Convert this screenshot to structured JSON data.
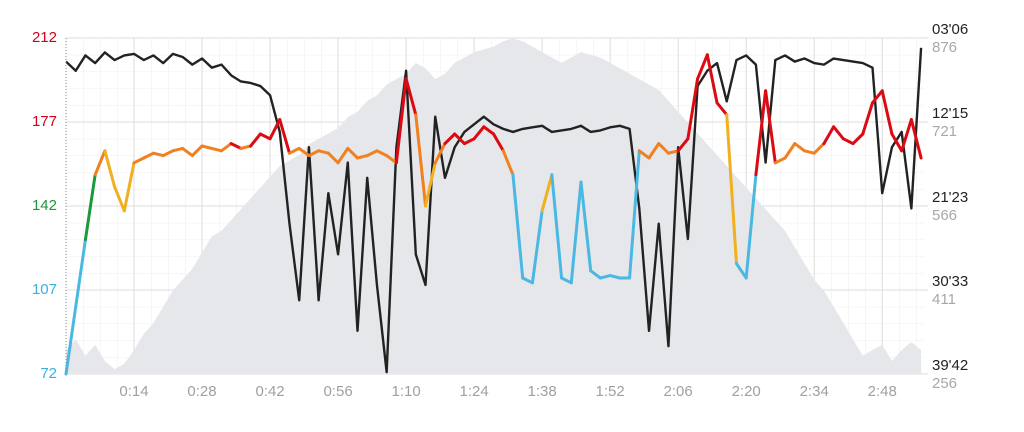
{
  "chart_data": {
    "type": "line",
    "x": [
      0,
      2,
      4,
      6,
      8,
      10,
      12,
      14,
      16,
      18,
      20,
      22,
      24,
      26,
      28,
      30,
      32,
      34,
      36,
      38,
      40,
      42,
      44,
      46,
      48,
      50,
      52,
      54,
      56,
      58,
      60,
      62,
      64,
      66,
      68,
      70,
      72,
      74,
      76,
      78,
      80,
      82,
      84,
      86,
      88,
      90,
      92,
      94,
      96,
      98,
      100,
      102,
      104,
      106,
      108,
      110,
      112,
      114,
      116,
      118,
      120,
      122,
      124,
      126,
      128,
      130,
      132,
      134,
      136,
      138,
      140,
      142,
      144,
      146,
      148,
      150,
      152,
      154,
      156,
      158,
      160,
      162,
      164,
      166,
      168,
      170,
      172,
      174,
      176
    ],
    "xlim": [
      0,
      176.6
    ],
    "xticks": [
      {
        "value": 14,
        "label": "0:14"
      },
      {
        "value": 28,
        "label": "0:28"
      },
      {
        "value": 42,
        "label": "0:42"
      },
      {
        "value": 56,
        "label": "0:56"
      },
      {
        "value": 70,
        "label": "1:10"
      },
      {
        "value": 84,
        "label": "1:24"
      },
      {
        "value": 98,
        "label": "1:38"
      },
      {
        "value": 112,
        "label": "1:52"
      },
      {
        "value": 126,
        "label": "2:06"
      },
      {
        "value": 140,
        "label": "2:20"
      },
      {
        "value": 154,
        "label": "2:34"
      },
      {
        "value": 168,
        "label": "2:48"
      }
    ],
    "ylim": [
      72,
      212
    ],
    "yticks": [
      72,
      107,
      142,
      177,
      212
    ],
    "ytick_colors": [
      "#3ab0dd",
      "#3ab0dd",
      "#1a9a3a",
      "#d0021b",
      "#d0021b"
    ],
    "hr": {
      "values": [
        72,
        100,
        128,
        155,
        165,
        150,
        140,
        160,
        162,
        164,
        163,
        165,
        166,
        163,
        167,
        166,
        165,
        168,
        166,
        167,
        172,
        170,
        178,
        164,
        166,
        163,
        165,
        164,
        160,
        166,
        162,
        163,
        165,
        163,
        160,
        195,
        180,
        142,
        160,
        168,
        172,
        168,
        170,
        175,
        172,
        165,
        155,
        112,
        110,
        140,
        155,
        112,
        110,
        152,
        115,
        112,
        113,
        112,
        112,
        165,
        162,
        168,
        164,
        165,
        170,
        195,
        205,
        185,
        180,
        118,
        112,
        155,
        190,
        160,
        162,
        168,
        165,
        164,
        168,
        175,
        170,
        168,
        172,
        185,
        190,
        172,
        165,
        178,
        162
      ],
      "zones": [
        {
          "min": 0,
          "color": "#4ab8e3"
        },
        {
          "min": 139,
          "color": "#1a9a3a"
        },
        {
          "min": 145,
          "color": "#f0b020"
        },
        {
          "min": 158,
          "color": "#f08020"
        },
        {
          "min": 167,
          "color": "#dc0a12"
        }
      ]
    },
    "pace": {
      "color": "#222222",
      "values": [
        340,
        400,
        300,
        350,
        280,
        330,
        300,
        290,
        330,
        300,
        350,
        290,
        310,
        360,
        320,
        380,
        360,
        430,
        470,
        480,
        500,
        560,
        800,
        1400,
        1900,
        900,
        1900,
        1200,
        1600,
        1000,
        2100,
        1100,
        1800,
        2370,
        900,
        400,
        1600,
        1800,
        700,
        1100,
        900,
        800,
        750,
        700,
        750,
        780,
        800,
        780,
        770,
        760,
        800,
        790,
        780,
        760,
        800,
        790,
        770,
        760,
        780,
        1300,
        2100,
        1400,
        2200,
        900,
        1500,
        500,
        400,
        350,
        600,
        330,
        300,
        360,
        1000,
        330,
        300,
        340,
        320,
        350,
        360,
        320,
        330,
        340,
        350,
        380,
        1200,
        900,
        800,
        1300,
        250
      ],
      "lim": [
        2382,
        186
      ],
      "ticks": [
        {
          "value": 186,
          "label": "03'06"
        },
        {
          "value": 735,
          "label": "12'15"
        },
        {
          "value": 1283,
          "label": "21'23"
        },
        {
          "value": 1833,
          "label": "30'33"
        },
        {
          "value": 2382,
          "label": "39'42"
        }
      ]
    },
    "elevation": {
      "color": "#e6e7ea",
      "values": [
        300,
        320,
        290,
        310,
        280,
        265,
        275,
        300,
        330,
        350,
        380,
        410,
        430,
        450,
        480,
        510,
        520,
        540,
        560,
        580,
        600,
        620,
        640,
        650,
        660,
        680,
        690,
        700,
        710,
        730,
        740,
        760,
        770,
        790,
        800,
        810,
        830,
        820,
        800,
        810,
        830,
        840,
        850,
        855,
        860,
        870,
        875,
        870,
        860,
        850,
        840,
        830,
        840,
        850,
        845,
        840,
        830,
        820,
        810,
        800,
        790,
        780,
        760,
        740,
        720,
        700,
        680,
        660,
        640,
        620,
        600,
        580,
        560,
        540,
        520,
        490,
        460,
        430,
        410,
        380,
        350,
        320,
        290,
        300,
        310,
        280,
        300,
        315,
        300
      ],
      "lim": [
        256,
        876
      ],
      "ticks": [
        256,
        411,
        566,
        721,
        876
      ]
    },
    "grid": true
  }
}
